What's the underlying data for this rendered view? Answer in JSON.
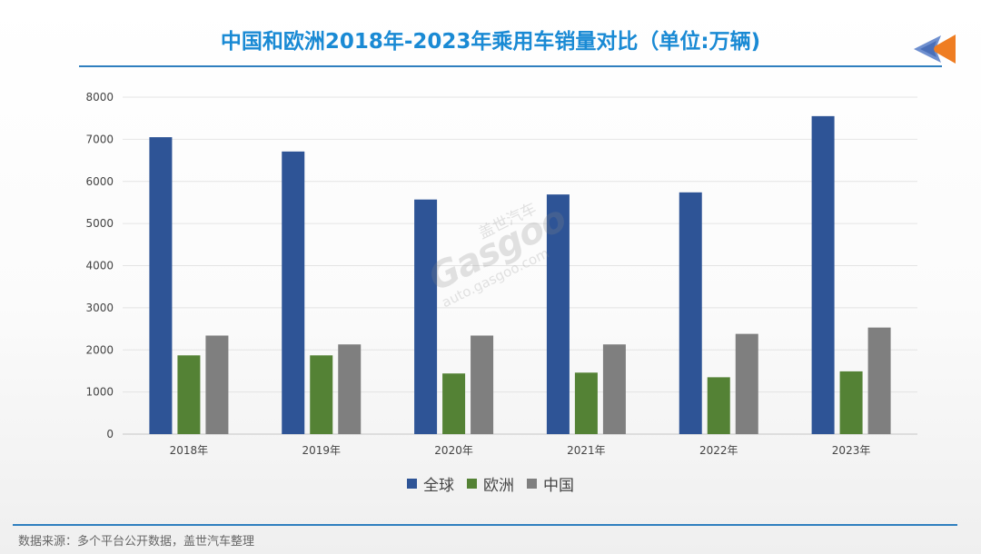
{
  "title": "中国和欧洲2018年-2023年乘用车销量对比（单位:万辆)",
  "footer": "数据来源：多个平台公开数据，盖世汽车整理",
  "watermark": {
    "brand": "Gasgoo",
    "chinese": "盖世汽车",
    "url": "auto.gasgoo.com"
  },
  "colors": {
    "global": "#2e5496",
    "europe": "#548235",
    "china": "#7f7f7f",
    "title": "#1a8ad4",
    "rule": "#2f7fbf"
  },
  "icons": {
    "corner": "double-arrow-left-icon"
  },
  "chart_data": {
    "type": "bar",
    "title": "",
    "xlabel": "",
    "ylabel": "",
    "categories": [
      "2018年",
      "2019年",
      "2020年",
      "2021年",
      "2022年",
      "2023年"
    ],
    "series": [
      {
        "name": "全球",
        "color": "#2e5496",
        "values": [
          7050,
          6710,
          5570,
          5690,
          5740,
          7550
        ]
      },
      {
        "name": "欧洲",
        "color": "#548235",
        "values": [
          1870,
          1870,
          1440,
          1460,
          1350,
          1490
        ]
      },
      {
        "name": "中国",
        "color": "#7f7f7f",
        "values": [
          2340,
          2130,
          2340,
          2130,
          2380,
          2530
        ]
      }
    ],
    "ylim": [
      0,
      8000
    ],
    "yticks": [
      0,
      1000,
      2000,
      3000,
      4000,
      5000,
      6000,
      7000,
      8000
    ],
    "grid": true,
    "legend": "bottom"
  }
}
